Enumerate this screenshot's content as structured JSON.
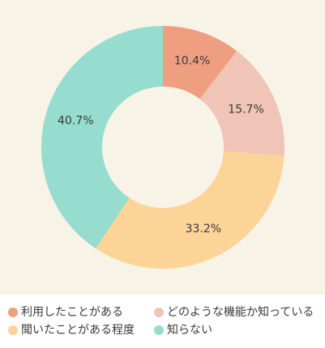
{
  "chart_data": {
    "type": "donut",
    "categories": [
      "利用したことがある",
      "どのような機能か知っている",
      "聞いたことがある程度",
      "知らない"
    ],
    "values": [
      10.4,
      15.7,
      33.2,
      40.7
    ],
    "value_labels": [
      "10.4%",
      "15.7%",
      "33.2%",
      "40.7%"
    ],
    "colors": [
      "#ef9f80",
      "#f0c4b6",
      "#fdd498",
      "#96dccf"
    ]
  }
}
